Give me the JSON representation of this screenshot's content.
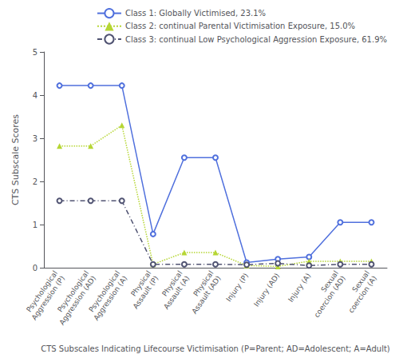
{
  "chart_data": {
    "type": "line",
    "xlabel": "CTS Subscales Indicating Lifecourse Victimisation (P=Parent; AD=Adolescent; A=Adult)",
    "ylabel": "CTS Subscale Scores",
    "categories": [
      "Psychological\nAggression (P)",
      "Psychological\nAggression (AD)",
      "Psychological\nAggression (A)",
      "Physical\nAssault (P)",
      "Physical\nAssault (A)",
      "Physical\nAssault (AD)",
      "Injury (P)",
      "Injury (AD)",
      "Injury (A)",
      "Sexual\ncoercion (AD)",
      "Sexual\ncoercion (A)"
    ],
    "series": [
      {
        "name": "Class 1: Globally Victimised, 23.1%",
        "values": [
          4.22,
          4.22,
          4.22,
          0.78,
          2.55,
          2.55,
          0.12,
          0.2,
          0.25,
          1.05,
          1.05
        ],
        "marker": "circle",
        "line_style": "solid"
      },
      {
        "name": "Class 2: continual Parental Victimisation Exposure, 15.0%",
        "values": [
          2.82,
          2.82,
          3.3,
          0.08,
          0.35,
          0.35,
          0.05,
          0.03,
          0.15,
          0.15,
          0.15
        ],
        "marker": "triangle",
        "line_style": "dotted"
      },
      {
        "name": "Class 3: continual Low Psychological Aggression Exposure, 61.9%",
        "values": [
          1.55,
          1.55,
          1.55,
          0.08,
          0.08,
          0.08,
          0.07,
          0.1,
          0.05,
          0.08,
          0.08
        ],
        "marker": "circle",
        "line_style": "dashdot"
      }
    ],
    "ylim": [
      0,
      5
    ],
    "yticks": [
      0,
      1,
      2,
      3,
      4,
      5
    ],
    "grid": false,
    "legend": "upper right"
  }
}
